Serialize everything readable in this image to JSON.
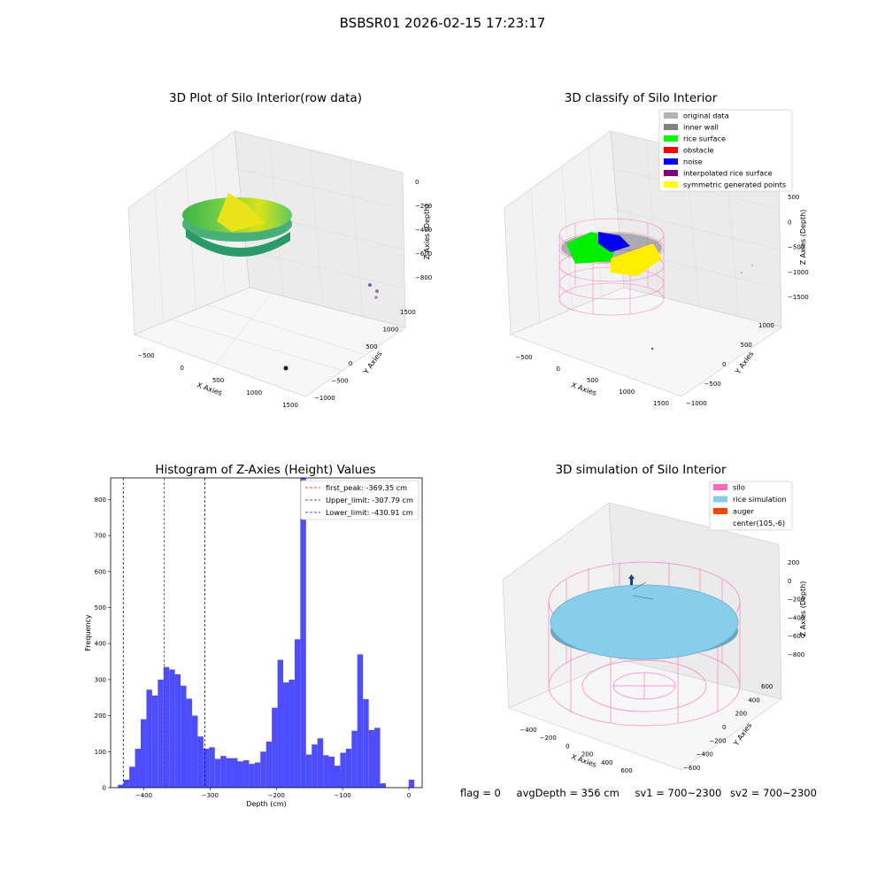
{
  "suptitle": "BSBSR01 2026-02-15 17:23:17",
  "panels": {
    "raw": {
      "title": "3D Plot of Silo Interior(row data)",
      "xlabel": "X Axies",
      "ylabel": "Y Axies",
      "zlabel": "Z Axies (Depth)",
      "xticks": [
        "-500",
        "0",
        "500",
        "1000",
        "1500"
      ],
      "yticks": [
        "-1000",
        "-500",
        "0",
        "500",
        "1000",
        "1500"
      ],
      "zticks": [
        "0",
        "-200",
        "-400",
        "-600",
        "-800"
      ]
    },
    "classify": {
      "title": "3D classify of Silo Interior",
      "xlabel": "X Axies",
      "ylabel": "Y Axies",
      "zlabel": "Z Axies (Depth)",
      "xticks": [
        "-500",
        "0",
        "500",
        "1000",
        "1500"
      ],
      "yticks": [
        "-1000",
        "-500",
        "0",
        "500",
        "1000"
      ],
      "zticks": [
        "500",
        "0",
        "-500",
        "-1000",
        "-1500"
      ],
      "legend": [
        {
          "label": "original data",
          "color": "#b3b3b3"
        },
        {
          "label": "inner wall",
          "color": "#808080"
        },
        {
          "label": "rice surface",
          "color": "#00ff00"
        },
        {
          "label": "obstacle",
          "color": "#ff0000"
        },
        {
          "label": "noise",
          "color": "#0000ff"
        },
        {
          "label": "interpolated rice surface",
          "color": "#800080"
        },
        {
          "label": "symmetric generated points",
          "color": "#ffff00"
        }
      ]
    },
    "simulation": {
      "title": "3D simulation of Silo Interior",
      "xlabel": "X Axies",
      "ylabel": "Y Axies",
      "zlabel": "Z Axies (Depth)",
      "xticks": [
        "-400",
        "-200",
        "0",
        "200",
        "400",
        "600"
      ],
      "yticks": [
        "-600",
        "-400",
        "-200",
        "0",
        "200",
        "400",
        "600"
      ],
      "zticks": [
        "200",
        "0",
        "-200",
        "-400",
        "-600",
        "-800"
      ],
      "legend": [
        {
          "label": "silo",
          "color": "#ff69b4"
        },
        {
          "label": "rice simulation",
          "color": "#87ceeb"
        },
        {
          "label": "auger",
          "color": "#ff4500"
        },
        {
          "label": "center(105,-6)",
          "color": "none"
        }
      ]
    }
  },
  "chart_data": {
    "type": "bar",
    "title": "Histogram of Z-Axies (Height) Values",
    "xlabel": "Depth (cm)",
    "ylabel": "Frequency",
    "xlim": [
      -450,
      20
    ],
    "ylim": [
      0,
      860
    ],
    "xticks": [
      -400,
      -300,
      -200,
      -100,
      0
    ],
    "yticks": [
      0,
      100,
      200,
      300,
      400,
      500,
      600,
      700,
      800
    ],
    "bin_width": 8.6,
    "bin_starts": [
      -439,
      -430.4,
      -421.8,
      -413.2,
      -404.6,
      -396,
      -387.4,
      -378.8,
      -370.2,
      -361.6,
      -353,
      -344.4,
      -335.8,
      -327.2,
      -318.6,
      -310,
      -301.4,
      -292.8,
      -284.2,
      -275.6,
      -267,
      -258.4,
      -249.8,
      -241.2,
      -232.6,
      -224,
      -215.4,
      -206.8,
      -198.2,
      -189.6,
      -181,
      -172.4,
      -163.8,
      -155.2,
      -146.6,
      -138,
      -129.4,
      -120.8,
      -112.2,
      -103.6,
      -95,
      -86.4,
      -77.8,
      -69.2,
      -60.6,
      -52,
      -43.4,
      -34.8,
      -26.2,
      -17.6,
      -9,
      -0.4
    ],
    "values": [
      8,
      22,
      58,
      108,
      190,
      272,
      256,
      300,
      335,
      328,
      315,
      283,
      247,
      200,
      142,
      108,
      112,
      80,
      88,
      82,
      82,
      73,
      76,
      66,
      70,
      100,
      128,
      222,
      355,
      292,
      300,
      412,
      860,
      92,
      120,
      137,
      90,
      86,
      61,
      97,
      108,
      158,
      370,
      246,
      160,
      166,
      12,
      0,
      0,
      0,
      0,
      22
    ],
    "lines": [
      {
        "label": "first_peak: -369.35 cm",
        "x": -369.35,
        "color": "#ff0000"
      },
      {
        "label": "Upper_limit: -307.79 cm",
        "x": -307.79,
        "color": "#0000ff"
      },
      {
        "label": "Lower_limit: -430.91 cm",
        "x": -430.91,
        "color": "#0000ff"
      }
    ],
    "bar_color": "#4d4dff"
  },
  "footer": {
    "flag": "flag = 0",
    "avg": "avgDepth = 356 cm",
    "sv1": "sv1 = 700~2300",
    "sv2": "sv2 = 700~2300"
  }
}
